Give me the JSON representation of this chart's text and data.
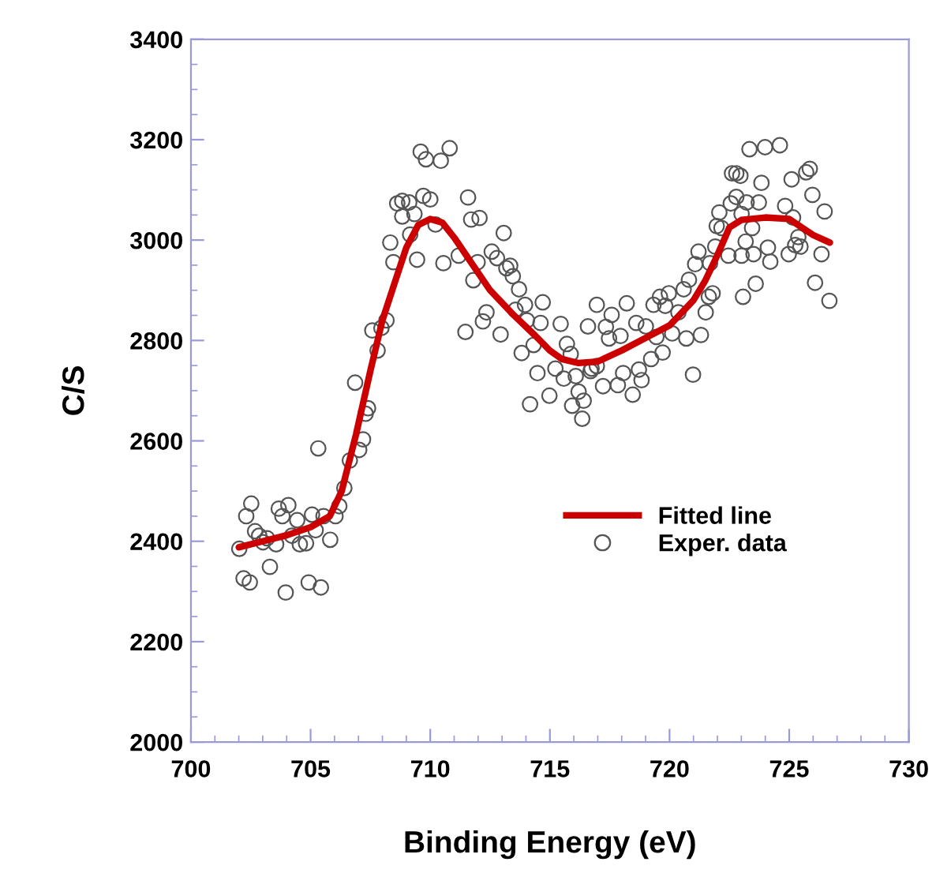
{
  "chart_data": {
    "type": "scatter",
    "xlabel": "Binding Energy (eV)",
    "ylabel": "C/S",
    "xlim": [
      700,
      730
    ],
    "xticks": [
      700,
      705,
      710,
      715,
      720,
      725,
      730
    ],
    "ylim": [
      2000,
      3400
    ],
    "yticks": [
      2000,
      2200,
      2400,
      2600,
      2800,
      3000,
      3200,
      3400
    ],
    "grid": false,
    "legend": "right",
    "series": [
      {
        "name": "Fitted line",
        "type": "line",
        "color": "#cc0000",
        "marker": "none",
        "line_style": "solid",
        "x": [
          702.0,
          703,
          704,
          705,
          705.8,
          706.3,
          706.9,
          707.5,
          708,
          708.5,
          709,
          709.5,
          710,
          710.5,
          711,
          711.8,
          712.5,
          713.5,
          714.4,
          715,
          715.5,
          716.2,
          717,
          718,
          719,
          720,
          721,
          721.5,
          722,
          722.5,
          723,
          724,
          725,
          726,
          726.7
        ],
        "values": [
          2388,
          2400,
          2412,
          2428,
          2450,
          2500,
          2613,
          2740,
          2840,
          2913,
          2985,
          3030,
          3042,
          3035,
          3005,
          2949,
          2900,
          2850,
          2809,
          2780,
          2763,
          2755,
          2758,
          2780,
          2805,
          2830,
          2880,
          2920,
          2970,
          3025,
          3040,
          3045,
          3042,
          3010,
          2995
        ]
      },
      {
        "name": "Exper. data",
        "color": "#555555",
        "marker": "circle",
        "x": [
          705.32,
          707.19,
          707.03,
          706.64,
          706.41,
          702.52,
          703.67,
          704.07,
          702.31,
          703.82,
          704.44,
          706.2,
          706.04,
          705.06,
          705.54,
          702.68,
          702.85,
          703.18,
          703.01,
          703.56,
          704.22,
          705.21,
          704.55,
          704.81,
          705.82,
          702.02,
          703.3,
          702.2,
          702.46,
          703.96,
          704.92,
          705.43,
          709.6,
          709.82,
          710.44,
          710.81,
          708.62,
          708.83,
          709.12,
          709.71,
          710.0,
          708.83,
          709.34,
          711.58,
          711.71,
          712.06,
          710.22,
          709.16,
          708.33,
          708.46,
          709.45,
          710.55,
          711.19,
          711.8,
          711.98,
          712.57,
          712.79,
          713.07,
          713.18,
          713.34,
          713.45,
          713.71,
          713.96,
          713.56,
          714.7,
          712.35,
          712.2,
          711.47,
          712.94,
          714.04,
          714.61,
          715.45,
          716.59,
          713.82,
          714.32,
          715.71,
          715.87,
          715.23,
          714.48,
          715.58,
          716.08,
          716.7,
          716.2,
          716.41,
          715.93,
          716.35,
          714.98,
          714.17,
          708.17,
          707.96,
          707.58,
          707.8,
          706.86,
          707.4,
          707.3,
          716.96,
          718.21,
          717.58,
          717.34,
          717.47,
          717.95,
          718.06,
          717.84,
          717.22,
          716.74,
          716.96,
          718.46,
          723.34,
          723.99,
          724.61,
          722.61,
          722.79,
          722.96,
          723.84,
          725.1,
          725.71,
          725.86,
          725.97,
          726.48,
          724.83,
          723.73,
          723.22,
          722.79,
          722.56,
          722.08,
          723.01,
          721.97,
          722.17,
          723.45,
          723.18,
          725.16,
          725.38,
          725.25,
          725.47,
          724.11,
          723.51,
          723.01,
          722.46,
          724.98,
          726.35,
          724.21,
          721.91,
          721.21,
          721.07,
          721.69,
          720.81,
          720.59,
          726.08,
          726.68,
          723.6,
          723.07,
          721.8,
          721.64,
          721.51,
          719.97,
          719.6,
          719.33,
          719.82,
          720.37,
          720.11,
          720.7,
          721.31,
          719.45,
          719.01,
          718.61,
          719.71,
          719.23,
          718.72,
          718.83,
          720.98
        ],
        "values": [
          2585,
          2603,
          2582,
          2561,
          2506,
          2475,
          2465,
          2472,
          2450,
          2450,
          2442,
          2470,
          2450,
          2453,
          2450,
          2420,
          2411,
          2406,
          2398,
          2394,
          2411,
          2422,
          2394,
          2396,
          2403,
          2385,
          2349,
          2326,
          2318,
          2298,
          2318,
          2308,
          3176,
          3161,
          3158,
          3183,
          3073,
          3078,
          3075,
          3088,
          3081,
          3047,
          3052,
          3085,
          3041,
          3044,
          3031,
          3011,
          2995,
          2956,
          2961,
          2954,
          2969,
          2920,
          2956,
          2977,
          2964,
          3014,
          2944,
          2949,
          2928,
          2902,
          2871,
          2861,
          2876,
          2856,
          2838,
          2817,
          2812,
          2840,
          2835,
          2833,
          2828,
          2775,
          2791,
          2793,
          2773,
          2744,
          2735,
          2724,
          2729,
          2739,
          2698,
          2680,
          2670,
          2644,
          2690,
          2673,
          2840,
          2825,
          2820,
          2780,
          2716,
          2665,
          2654,
          2871,
          2874,
          2851,
          2827,
          2804,
          2809,
          2735,
          2711,
          2709,
          2744,
          2749,
          2692,
          3181,
          3185,
          3189,
          3133,
          3133,
          3128,
          3114,
          3121,
          3135,
          3142,
          3090,
          3057,
          3068,
          3075,
          3075,
          3086,
          3073,
          3055,
          3052,
          3028,
          3024,
          3024,
          2997,
          3045,
          3006,
          2990,
          2987,
          2985,
          2972,
          2969,
          2969,
          2972,
          2972,
          2957,
          2987,
          2977,
          2952,
          2954,
          2921,
          2902,
          2915,
          2879,
          2913,
          2887,
          2894,
          2887,
          2856,
          2894,
          2887,
          2871,
          2869,
          2856,
          2814,
          2804,
          2811,
          2807,
          2828,
          2835,
          2776,
          2763,
          2742,
          2721,
          2732
        ]
      }
    ]
  }
}
